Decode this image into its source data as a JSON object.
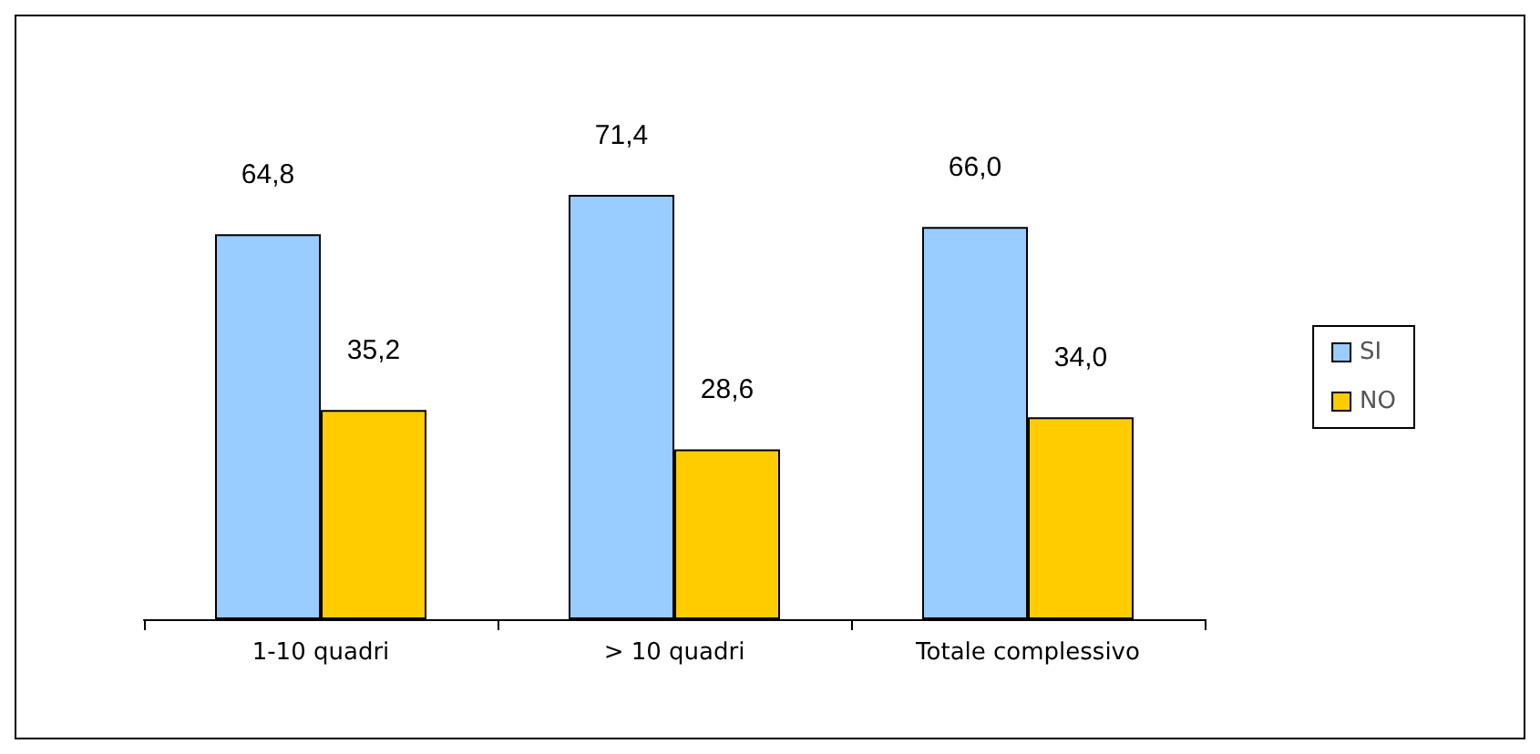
{
  "chart_data": {
    "type": "bar",
    "categories": [
      "1-10 quadri",
      "> 10 quadri",
      "Totale complessivo"
    ],
    "series": [
      {
        "name": "SI",
        "color": "#99ccff",
        "values": [
          64.8,
          71.4,
          66.0
        ],
        "value_labels": [
          "64,8",
          "71,4",
          "66,0"
        ]
      },
      {
        "name": "NO",
        "color": "#ffcc00",
        "values": [
          35.2,
          28.6,
          34.0
        ],
        "value_labels": [
          "35,2",
          "28,6",
          "34,0"
        ]
      }
    ],
    "legend": "right"
  }
}
